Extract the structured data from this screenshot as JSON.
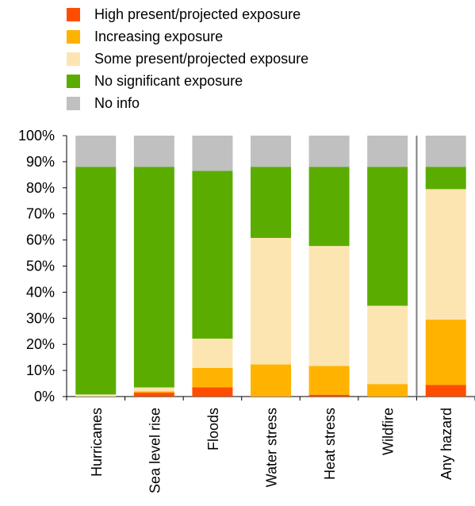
{
  "chart_data": {
    "type": "bar",
    "stacked": true,
    "categories": [
      "Hurricanes",
      "Sea level rise",
      "Floods",
      "Water stress",
      "Heat stress",
      "Wildfire",
      "Any hazard"
    ],
    "series": [
      {
        "name": "High present/projected exposure",
        "color": "#ff4d00",
        "values": [
          0,
          1.5,
          3.5,
          0,
          0.7,
          0,
          4.5
        ]
      },
      {
        "name": "Increasing exposure",
        "color": "#ffb300",
        "values": [
          0,
          0.5,
          7.5,
          12.3,
          11,
          4.8,
          25
        ]
      },
      {
        "name": "Some present/projected exposure",
        "color": "#fde5b2",
        "values": [
          0.8,
          1.5,
          11.2,
          48.5,
          46,
          30,
          50
        ]
      },
      {
        "name": "No significant exposure",
        "color": "#5aad00",
        "values": [
          87.2,
          84.5,
          64.3,
          27.2,
          30.3,
          53.2,
          8.5
        ]
      },
      {
        "name": "No info",
        "color": "#c0c0c0",
        "values": [
          12,
          12,
          13.5,
          12,
          12,
          12,
          12
        ]
      }
    ],
    "yticks": [
      "0%",
      "10%",
      "20%",
      "30%",
      "40%",
      "50%",
      "60%",
      "70%",
      "80%",
      "90%",
      "100%"
    ],
    "ylim": [
      0,
      100
    ],
    "grid": false,
    "legend_position": "top-left"
  }
}
